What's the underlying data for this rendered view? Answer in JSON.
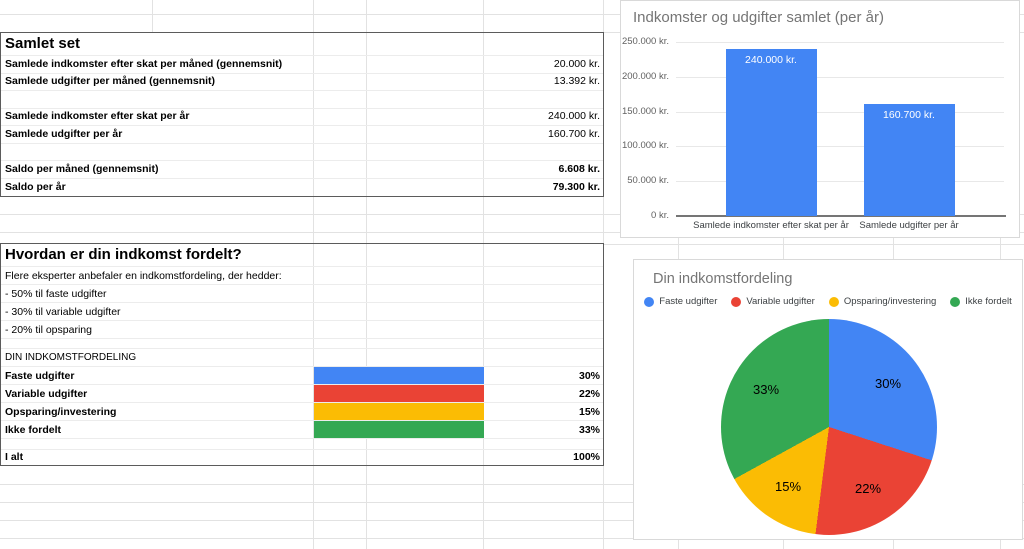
{
  "sheet": {
    "box1": {
      "title": "Samlet set",
      "rows": [
        {
          "label": "Samlede indkomster efter skat per måned (gennemsnit)",
          "value": "20.000 kr."
        },
        {
          "label": "Samlede udgifter per måned (gennemsnit)",
          "value": "13.392 kr."
        },
        {
          "label": "",
          "value": ""
        },
        {
          "label": "Samlede indkomster efter skat per år",
          "value": "240.000 kr."
        },
        {
          "label": "Samlede udgifter per år",
          "value": "160.700 kr."
        },
        {
          "label": "",
          "value": ""
        },
        {
          "label": "Saldo per måned (gennemsnit)",
          "value": "6.608 kr."
        },
        {
          "label": "Saldo per år",
          "value": "79.300 kr."
        }
      ]
    },
    "box2": {
      "title": "Hvordan er din indkomst fordelt?",
      "intro": "Flere eksperter anbefaler en indkomstfordeling, der hedder:",
      "bullets": [
        "- 50% til faste udgifter",
        "- 30% til variable udgifter",
        "- 20% til opsparing"
      ],
      "section_label": "DIN INDKOMSTFORDELING",
      "allocation_rows": [
        {
          "label": "Faste udgifter",
          "pct": "30%",
          "color": "#4285F4"
        },
        {
          "label": "Variable udgifter",
          "pct": "22%",
          "color": "#EA4335"
        },
        {
          "label": "Opsparing/investering",
          "pct": "15%",
          "color": "#FBBC04"
        },
        {
          "label": "Ikke fordelt",
          "pct": "33%",
          "color": "#34A853"
        }
      ],
      "total_label": "I alt",
      "total_value": "100%"
    }
  },
  "chart_data": [
    {
      "type": "bar",
      "title": "Indkomster og udgifter samlet (per år)",
      "categories": [
        "Samlede indkomster efter skat per år",
        "Samlede udgifter per år"
      ],
      "values": [
        240000,
        160700
      ],
      "bar_labels": [
        "240.000 kr.",
        "160.700 kr."
      ],
      "bar_color": "#4285F4",
      "ylim": [
        0,
        250000
      ],
      "yticks": [
        0,
        50000,
        100000,
        150000,
        200000,
        250000
      ],
      "ytick_labels": [
        "0 kr.",
        "50.000 kr.",
        "100.000 kr.",
        "150.000 kr.",
        "200.000 kr.",
        "250.000 kr."
      ],
      "grid": true,
      "legend": "none",
      "xlabel": "",
      "ylabel": ""
    },
    {
      "type": "pie",
      "title": "Din indkomstfordeling",
      "labels": [
        "Faste udgifter",
        "Variable udgifter",
        "Opsparing/investering",
        "Ikke fordelt"
      ],
      "values": [
        30,
        22,
        15,
        33
      ],
      "slice_labels": [
        "30%",
        "22%",
        "15%",
        "33%"
      ],
      "colors": [
        "#4285F4",
        "#EA4335",
        "#FBBC04",
        "#34A853"
      ],
      "legend_position": "top",
      "start_angle_deg": 0
    }
  ]
}
